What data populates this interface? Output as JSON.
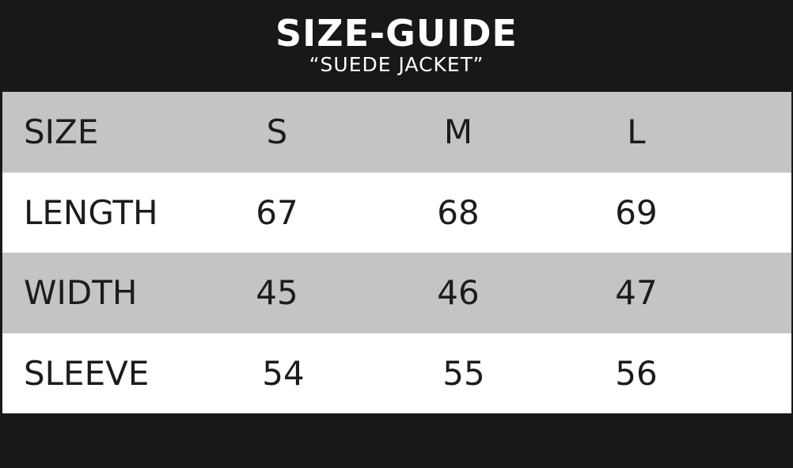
{
  "title": "SIZE-GUIDE",
  "subtitle": "“SUEDE JACKET”",
  "table": {
    "header": [
      "SIZE",
      "S",
      "M",
      "L"
    ],
    "rows": [
      [
        "LENGTH",
        "67",
        "68",
        "69"
      ],
      [
        "WIDTH",
        "45",
        "46",
        "47"
      ],
      [
        "SLEEVE",
        "54",
        "55",
        "56"
      ]
    ]
  },
  "colors": {
    "background": "#181818",
    "header_row": "#c4c4c4",
    "alt_row": "#ffffff",
    "text": "#1c1c1c"
  }
}
